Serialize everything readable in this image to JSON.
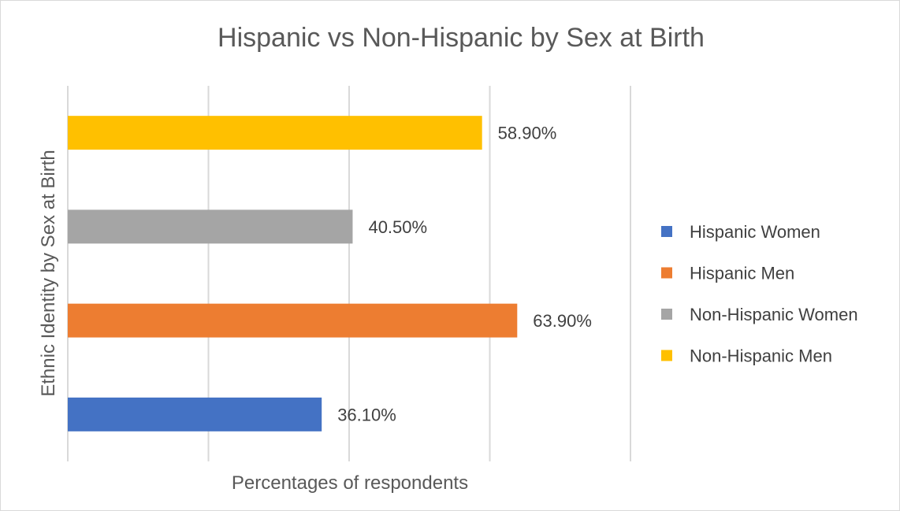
{
  "chart_data": {
    "type": "bar",
    "orientation": "horizontal",
    "title": "Hispanic vs Non-Hispanic by Sex at Birth",
    "xlabel": "Percentages of respondents",
    "ylabel": "Ethnic Identity by Sex at Birth",
    "xlim": [
      0,
      80
    ],
    "grid": true,
    "legend_position": "right",
    "series": [
      {
        "name": "Hispanic Women",
        "value": 36.1,
        "label": "36.10%",
        "color": "#4472C4"
      },
      {
        "name": "Hispanic Men",
        "value": 63.9,
        "label": "63.90%",
        "color": "#ED7D31"
      },
      {
        "name": "Non-Hispanic Women",
        "value": 40.5,
        "label": "40.50%",
        "color": "#A5A5A5"
      },
      {
        "name": "Non-Hispanic Men",
        "value": 58.9,
        "label": "58.90%",
        "color": "#FFC000"
      }
    ]
  }
}
